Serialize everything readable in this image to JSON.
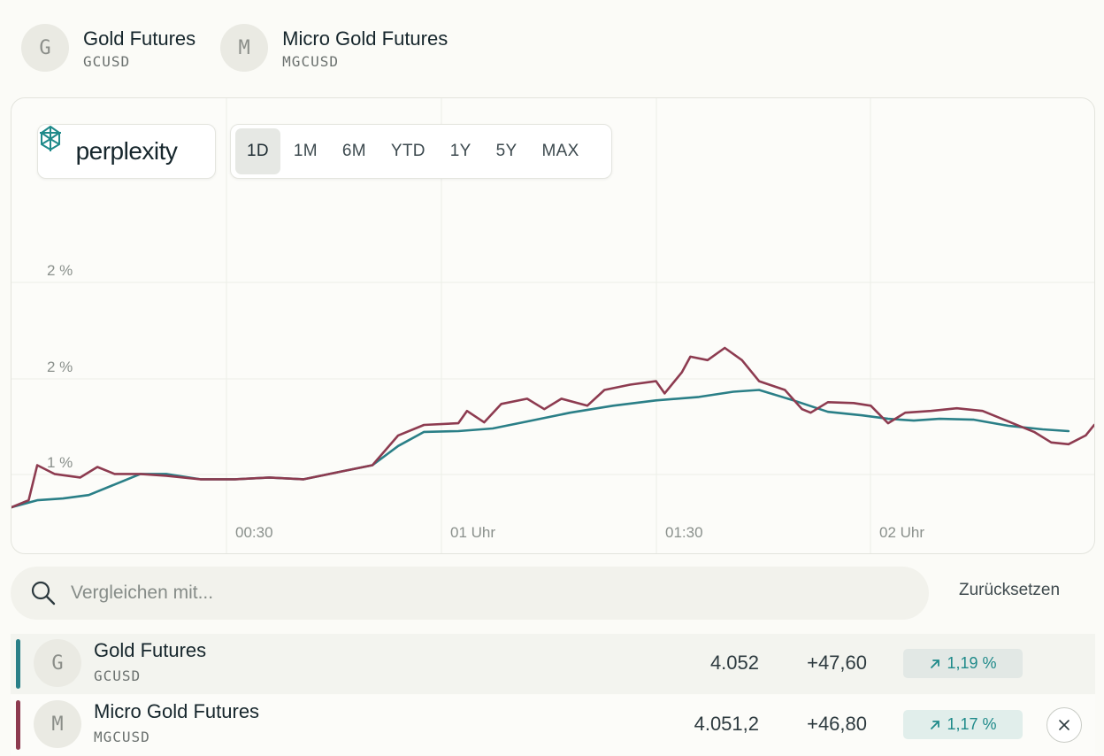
{
  "header": {
    "instruments": [
      {
        "initial": "G",
        "name": "Gold Futures",
        "symbol": "GCUSD"
      },
      {
        "initial": "M",
        "name": "Micro Gold Futures",
        "symbol": "MGCUSD"
      }
    ]
  },
  "logo": {
    "text": "perplexity"
  },
  "ranges": [
    "1D",
    "1M",
    "6M",
    "YTD",
    "1Y",
    "5Y",
    "MAX"
  ],
  "active_range": "1D",
  "chart_data": {
    "type": "line",
    "x_ticks": [
      "00:30",
      "01 Uhr",
      "01:30",
      "02 Uhr"
    ],
    "y_ticks": [
      "2 %",
      "2 %",
      "1 %"
    ],
    "grid": true,
    "series": [
      {
        "name": "Gold Futures",
        "color": "#2a7f87",
        "points": [
          [
            0,
            0.48
          ],
          [
            3,
            0.56
          ],
          [
            6,
            0.58
          ],
          [
            9,
            0.62
          ],
          [
            12,
            0.74
          ],
          [
            15,
            0.86
          ],
          [
            18,
            0.86
          ],
          [
            22,
            0.8
          ],
          [
            26,
            0.8
          ],
          [
            30,
            0.82
          ],
          [
            34,
            0.8
          ],
          [
            38,
            0.88
          ],
          [
            42,
            0.96
          ],
          [
            45,
            1.18
          ],
          [
            48,
            1.34
          ],
          [
            52,
            1.35
          ],
          [
            56,
            1.38
          ],
          [
            60,
            1.46
          ],
          [
            65,
            1.56
          ],
          [
            70,
            1.64
          ],
          [
            75,
            1.7
          ],
          [
            80,
            1.74
          ],
          [
            84,
            1.8
          ],
          [
            87,
            1.82
          ],
          [
            91,
            1.7
          ],
          [
            95,
            1.57
          ],
          [
            99,
            1.53
          ],
          [
            102,
            1.49
          ],
          [
            105,
            1.47
          ],
          [
            108,
            1.49
          ],
          [
            112,
            1.48
          ],
          [
            116,
            1.41
          ],
          [
            120,
            1.37
          ],
          [
            123,
            1.35
          ]
        ]
      },
      {
        "name": "Micro Gold Futures",
        "color": "#8d3b50",
        "points": [
          [
            0,
            0.48
          ],
          [
            2,
            0.56
          ],
          [
            3,
            0.96
          ],
          [
            5,
            0.86
          ],
          [
            8,
            0.82
          ],
          [
            10,
            0.94
          ],
          [
            12,
            0.86
          ],
          [
            15,
            0.86
          ],
          [
            18,
            0.84
          ],
          [
            22,
            0.8
          ],
          [
            26,
            0.8
          ],
          [
            30,
            0.82
          ],
          [
            34,
            0.8
          ],
          [
            38,
            0.88
          ],
          [
            42,
            0.96
          ],
          [
            45,
            1.3
          ],
          [
            48,
            1.42
          ],
          [
            52,
            1.44
          ],
          [
            53,
            1.58
          ],
          [
            55,
            1.45
          ],
          [
            57,
            1.66
          ],
          [
            60,
            1.72
          ],
          [
            62,
            1.6
          ],
          [
            64,
            1.72
          ],
          [
            67,
            1.64
          ],
          [
            69,
            1.82
          ],
          [
            72,
            1.88
          ],
          [
            75,
            1.92
          ],
          [
            76,
            1.78
          ],
          [
            78,
            2.02
          ],
          [
            79,
            2.2
          ],
          [
            81,
            2.16
          ],
          [
            83,
            2.3
          ],
          [
            85,
            2.16
          ],
          [
            87,
            1.92
          ],
          [
            90,
            1.82
          ],
          [
            92,
            1.6
          ],
          [
            93,
            1.56
          ],
          [
            95,
            1.68
          ],
          [
            98,
            1.67
          ],
          [
            100,
            1.64
          ],
          [
            102,
            1.44
          ],
          [
            104,
            1.56
          ],
          [
            107,
            1.58
          ],
          [
            110,
            1.61
          ],
          [
            113,
            1.58
          ],
          [
            116,
            1.46
          ],
          [
            119,
            1.34
          ],
          [
            121,
            1.22
          ],
          [
            123,
            1.2
          ],
          [
            125,
            1.3
          ],
          [
            126,
            1.42
          ]
        ]
      }
    ]
  },
  "search": {
    "placeholder": "Vergleichen mit..."
  },
  "reset_label": "Zurücksetzen",
  "rows": [
    {
      "initial": "G",
      "name": "Gold Futures",
      "symbol": "GCUSD",
      "price": "4.052",
      "change": "+47,60",
      "percent": "1,19 %",
      "color": "#2a7f87"
    },
    {
      "initial": "M",
      "name": "Micro Gold Futures",
      "symbol": "MGCUSD",
      "price": "4.051,2",
      "change": "+46,80",
      "percent": "1,17 %",
      "color": "#8d3b50"
    }
  ]
}
